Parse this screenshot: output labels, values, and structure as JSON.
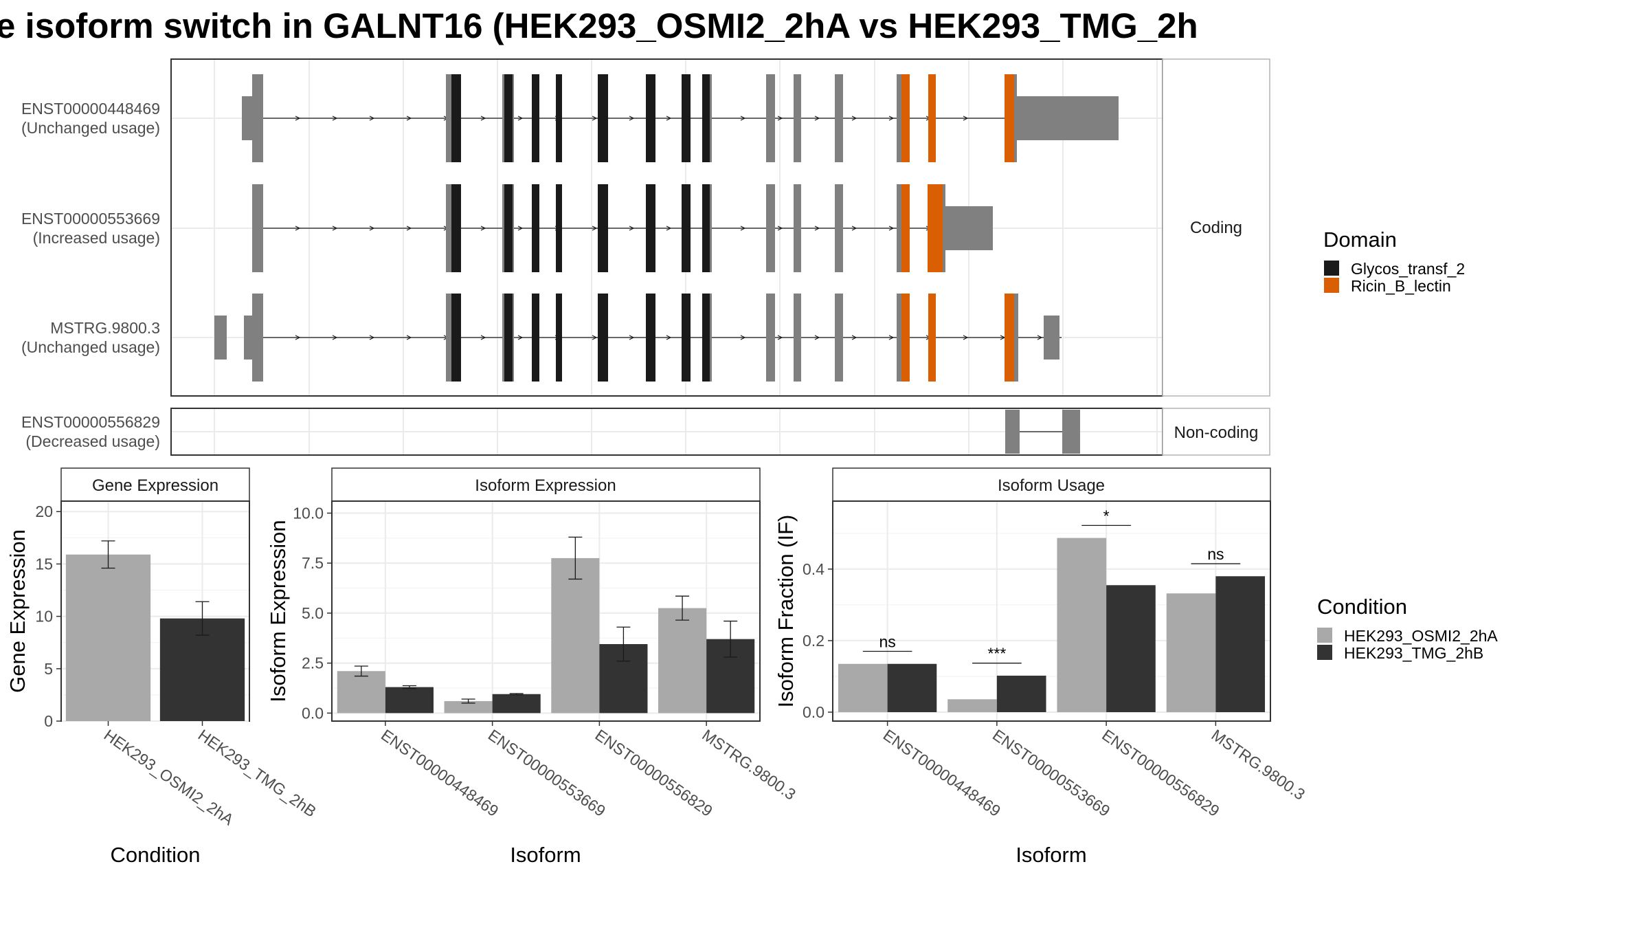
{
  "title": "e isoform switch in GALNT16 (HEK293_OSMI2_2hA vs HEK293_TMG_2h",
  "colors": {
    "exon": "#808080",
    "glycos_transf_2": "#1a1a1a",
    "ricin_b_lectin": "#d95f02",
    "condition_a": "#a9a9a9",
    "condition_b": "#333333"
  },
  "structure": {
    "coding_strip": "Coding",
    "noncoding_strip": "Non-coding",
    "isoforms": [
      {
        "id": "ENST00000448469",
        "usage": "(Unchanged usage)",
        "group": "coding"
      },
      {
        "id": "ENST00000553669",
        "usage": "(Increased usage)",
        "group": "coding"
      },
      {
        "id": "MSTRG.9800.3",
        "usage": "(Unchanged usage)",
        "group": "coding"
      },
      {
        "id": "ENST00000556829",
        "usage": "(Decreased usage)",
        "group": "noncoding"
      }
    ]
  },
  "legend_domain": {
    "title": "Domain",
    "items": [
      {
        "label": "Glycos_transf_2",
        "color": "#1a1a1a"
      },
      {
        "label": "Ricin_B_lectin",
        "color": "#d95f02"
      }
    ]
  },
  "legend_condition": {
    "title": "Condition",
    "items": [
      {
        "label": "HEK293_OSMI2_2hA",
        "color": "#a9a9a9"
      },
      {
        "label": "HEK293_TMG_2hB",
        "color": "#333333"
      }
    ]
  },
  "chart_data": [
    {
      "type": "bar",
      "title": "Gene Expression",
      "xlabel": "Condition",
      "ylabel": "Gene Expression",
      "categories": [
        "HEK293_OSMI2_2hA",
        "HEK293_TMG_2hB"
      ],
      "values": [
        15.9,
        9.8
      ],
      "error": [
        1.3,
        1.6
      ],
      "ylim": [
        0,
        21
      ],
      "yticks": [
        "0",
        "5",
        "10",
        "15",
        "20"
      ],
      "grid": true
    },
    {
      "type": "bar",
      "title": "Isoform Expression",
      "xlabel": "Isoform",
      "ylabel": "Isoform Expression",
      "categories": [
        "ENST00000448469",
        "ENST00000553669",
        "ENST00000556829",
        "MSTRG.9800.3"
      ],
      "series": [
        {
          "name": "HEK293_OSMI2_2hA",
          "values": [
            2.1,
            0.6,
            7.75,
            5.25
          ],
          "error": [
            0.25,
            0.1,
            1.05,
            0.6
          ]
        },
        {
          "name": "HEK293_TMG_2hB",
          "values": [
            1.3,
            0.95,
            3.45,
            3.7
          ],
          "error": [
            0.07,
            0.03,
            0.85,
            0.9
          ]
        }
      ],
      "ylim": [
        -0.4,
        10.6
      ],
      "yticks": [
        "0.0",
        "2.5",
        "5.0",
        "7.5",
        "10.0"
      ],
      "grid": true
    },
    {
      "type": "bar",
      "title": "Isoform Usage",
      "xlabel": "Isoform",
      "ylabel": "Isoform Fraction (IF)",
      "categories": [
        "ENST00000448469",
        "ENST00000553669",
        "ENST00000556829",
        "MSTRG.9800.3"
      ],
      "series": [
        {
          "name": "HEK293_OSMI2_2hA",
          "values": [
            0.135,
            0.036,
            0.487,
            0.332
          ]
        },
        {
          "name": "HEK293_TMG_2hB",
          "values": [
            0.135,
            0.102,
            0.355,
            0.38
          ]
        }
      ],
      "significance": [
        "ns",
        "***",
        "*",
        "ns"
      ],
      "ylim": [
        -0.025,
        0.59
      ],
      "yticks": [
        "0.0",
        "0.2",
        "0.4"
      ],
      "grid": true
    }
  ]
}
